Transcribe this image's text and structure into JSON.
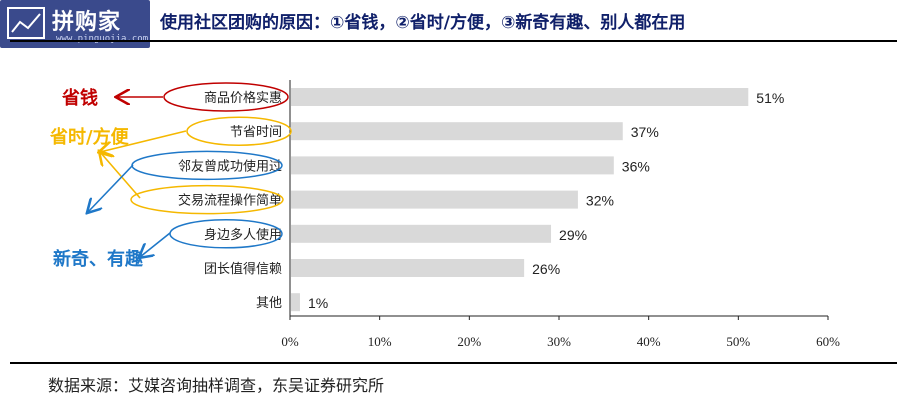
{
  "title": "使用社区团购的原因：①省钱，②省时/方便，③新奇有趣、别人都在用",
  "logo": {
    "text": "拼购家",
    "url": "www.pinguojia.com"
  },
  "source": "数据来源：艾媒咨询抽样调查，东吴证券研究所",
  "annotations": {
    "save_money": "省钱",
    "save_time": "省时/方便",
    "novelty": "新奇、有趣"
  },
  "colors": {
    "bar": "#d9d9d9",
    "title": "#10206a",
    "save_money": "#c00000",
    "save_time": "#f5b800",
    "novelty": "#1f78c8"
  },
  "chart_data": {
    "type": "bar",
    "orientation": "horizontal",
    "categories": [
      "商品价格实惠",
      "节省时间",
      "邻友曾成功使用过",
      "交易流程操作简单",
      "身边多人使用",
      "团长值得信赖",
      "其他"
    ],
    "values": [
      51,
      37,
      36,
      32,
      29,
      26,
      1
    ],
    "value_labels": [
      "51%",
      "37%",
      "36%",
      "32%",
      "29%",
      "26%",
      "1%"
    ],
    "xlim": [
      0,
      60
    ],
    "xticks": [
      0,
      10,
      20,
      30,
      40,
      50,
      60
    ],
    "xtick_labels": [
      "0%",
      "10%",
      "20%",
      "30%",
      "40%",
      "50%",
      "60%"
    ],
    "grid": false
  }
}
